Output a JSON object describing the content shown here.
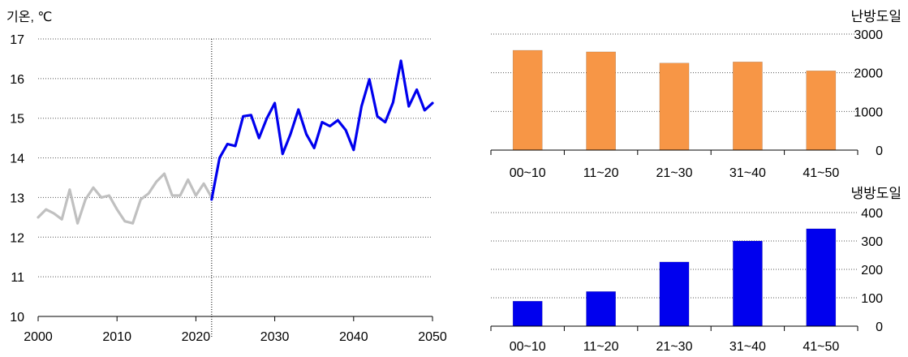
{
  "chart_data": [
    {
      "type": "line",
      "ylabel": "기온, ℃",
      "xlim": [
        2000,
        2050
      ],
      "ylim": [
        10,
        17
      ],
      "x_ticks": [
        2000,
        2010,
        2020,
        2030,
        2040,
        2050
      ],
      "y_ticks": [
        10,
        11,
        12,
        13,
        14,
        15,
        16,
        17
      ],
      "grid": "horizontal dotted",
      "divider_year": 2022,
      "series": [
        {
          "color": "#c0c0c0",
          "x": [
            2000,
            2001,
            2002,
            2003,
            2004,
            2005,
            2006,
            2007,
            2008,
            2009,
            2010,
            2011,
            2012,
            2013,
            2014,
            2015,
            2016,
            2017,
            2018,
            2019,
            2020,
            2021,
            2022
          ],
          "y": [
            12.5,
            12.7,
            12.6,
            12.45,
            13.2,
            12.35,
            12.95,
            13.25,
            13.0,
            13.05,
            12.7,
            12.4,
            12.35,
            12.95,
            13.1,
            13.4,
            13.6,
            13.05,
            13.05,
            13.45,
            13.05,
            13.35,
            13.0
          ]
        },
        {
          "color": "#0000ee",
          "x": [
            2022,
            2023,
            2024,
            2025,
            2026,
            2027,
            2028,
            2029,
            2030,
            2031,
            2032,
            2033,
            2034,
            2035,
            2036,
            2037,
            2038,
            2039,
            2040,
            2041,
            2042,
            2043,
            2044,
            2045,
            2046,
            2047,
            2048,
            2049,
            2050
          ],
          "y": [
            12.95,
            14.0,
            14.35,
            14.3,
            15.05,
            15.08,
            14.5,
            15.0,
            15.38,
            14.1,
            14.6,
            15.22,
            14.6,
            14.25,
            14.9,
            14.8,
            14.95,
            14.7,
            14.2,
            15.3,
            15.98,
            15.05,
            14.9,
            15.4,
            16.45,
            15.3,
            15.72,
            15.2,
            15.38
          ]
        }
      ]
    },
    {
      "type": "bar",
      "title": "난방도일",
      "categories": [
        "00~10",
        "11~20",
        "21~30",
        "31~40",
        "41~50"
      ],
      "values": [
        2580,
        2540,
        2250,
        2280,
        2050
      ],
      "ylim": [
        0,
        3000
      ],
      "y_ticks": [
        0,
        1000,
        2000,
        3000
      ],
      "color": "#f79646",
      "grid": "horizontal dotted"
    },
    {
      "type": "bar",
      "title": "냉방도일",
      "categories": [
        "00~10",
        "11~20",
        "21~30",
        "31~40",
        "41~50"
      ],
      "values": [
        88,
        122,
        226,
        300,
        343
      ],
      "ylim": [
        0,
        400
      ],
      "y_ticks": [
        0,
        100,
        200,
        300,
        400
      ],
      "color": "#0000ee",
      "grid": "horizontal dotted"
    }
  ]
}
